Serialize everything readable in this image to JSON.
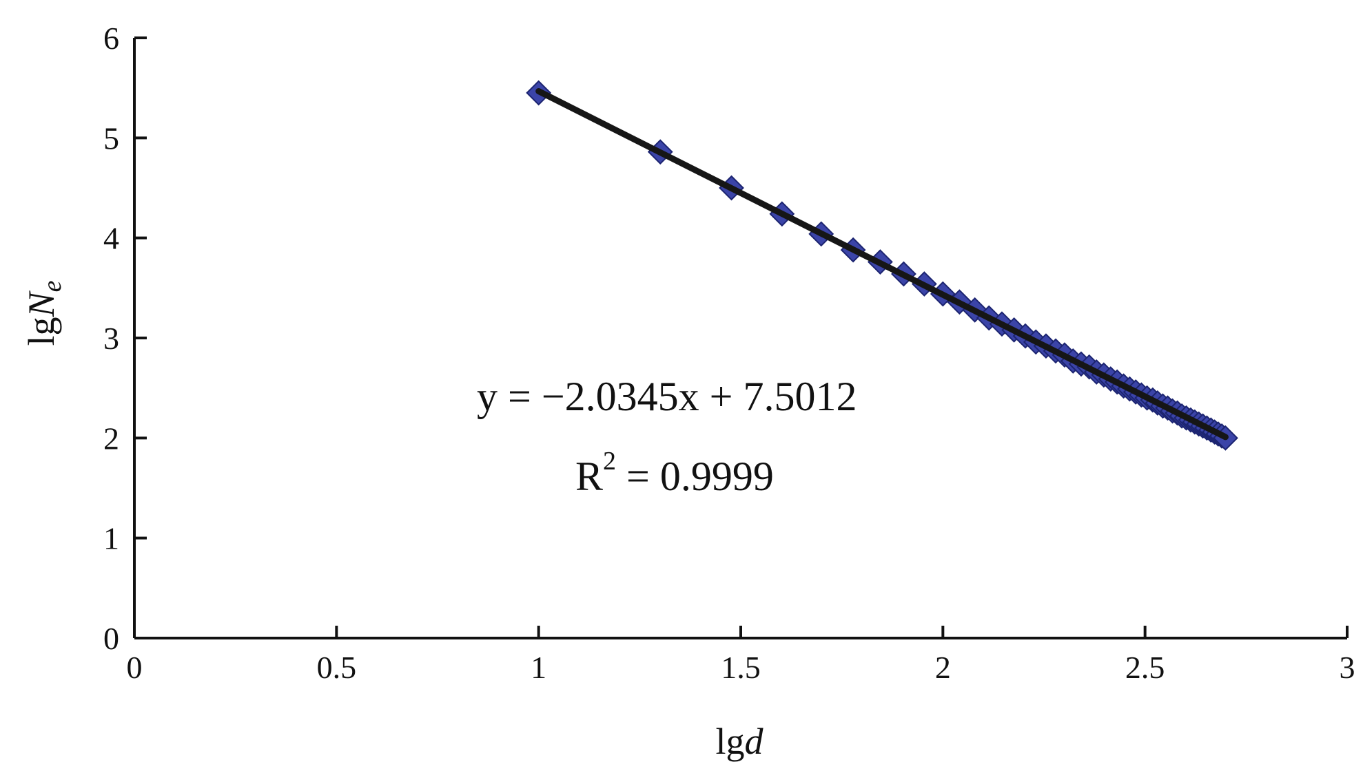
{
  "chart_data": {
    "type": "scatter",
    "title": "",
    "xlabel": {
      "prefix": "lg",
      "var": "d"
    },
    "ylabel": {
      "prefix": "lg",
      "var": "N",
      "sub": "e"
    },
    "xlim": [
      0,
      3
    ],
    "ylim": [
      0,
      6
    ],
    "xticks": [
      0,
      0.5,
      1,
      1.5,
      2,
      2.5,
      3
    ],
    "xtick_labels": [
      "0",
      "0.5",
      "1",
      "1.5",
      "2",
      "2.5",
      "3"
    ],
    "yticks": [
      0,
      1,
      2,
      3,
      4,
      5,
      6
    ],
    "ytick_labels": [
      "0",
      "1",
      "2",
      "3",
      "4",
      "5",
      "6"
    ],
    "grid": false,
    "marker_color": "#3b44a8",
    "line_color": "#161616",
    "points": [
      [
        1.0,
        5.45
      ],
      [
        1.301,
        4.86
      ],
      [
        1.477,
        4.5
      ],
      [
        1.602,
        4.24
      ],
      [
        1.699,
        4.04
      ],
      [
        1.778,
        3.88
      ],
      [
        1.845,
        3.76
      ],
      [
        1.903,
        3.64
      ],
      [
        1.954,
        3.54
      ],
      [
        2.0,
        3.44
      ],
      [
        2.041,
        3.36
      ],
      [
        2.079,
        3.28
      ],
      [
        2.114,
        3.2
      ],
      [
        2.146,
        3.14
      ],
      [
        2.176,
        3.08
      ],
      [
        2.204,
        3.02
      ],
      [
        2.23,
        2.96
      ],
      [
        2.255,
        2.92
      ],
      [
        2.279,
        2.87
      ],
      [
        2.301,
        2.83
      ],
      [
        2.322,
        2.77
      ],
      [
        2.342,
        2.74
      ],
      [
        2.362,
        2.71
      ],
      [
        2.38,
        2.66
      ],
      [
        2.398,
        2.63
      ],
      [
        2.415,
        2.59
      ],
      [
        2.431,
        2.56
      ],
      [
        2.447,
        2.52
      ],
      [
        2.462,
        2.49
      ],
      [
        2.477,
        2.46
      ],
      [
        2.491,
        2.43
      ],
      [
        2.505,
        2.4
      ],
      [
        2.519,
        2.38
      ],
      [
        2.531,
        2.35
      ],
      [
        2.544,
        2.32
      ],
      [
        2.556,
        2.3
      ],
      [
        2.568,
        2.27
      ],
      [
        2.58,
        2.25
      ],
      [
        2.591,
        2.22
      ],
      [
        2.602,
        2.2
      ],
      [
        2.613,
        2.18
      ],
      [
        2.623,
        2.16
      ],
      [
        2.633,
        2.14
      ],
      [
        2.643,
        2.12
      ],
      [
        2.653,
        2.1
      ],
      [
        2.663,
        2.08
      ],
      [
        2.672,
        2.06
      ],
      [
        2.681,
        2.04
      ],
      [
        2.69,
        2.02
      ],
      [
        2.699,
        2.0
      ]
    ],
    "fit": {
      "slope": -2.0345,
      "intercept": 7.5012,
      "x_range": [
        1.0,
        2.699
      ]
    },
    "annotations": {
      "equation": "y = −2.0345x + 7.5012",
      "r2_prefix": "R",
      "r2_sup": "2",
      "r2_value": " = 0.9999"
    }
  }
}
